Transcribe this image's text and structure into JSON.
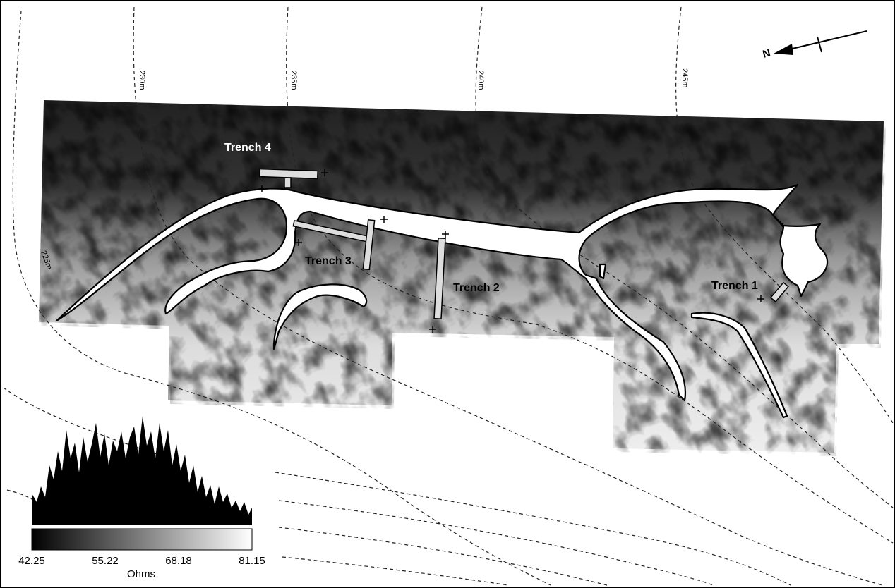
{
  "north_arrow": {
    "label": "N"
  },
  "contours": [
    {
      "label": "230m"
    },
    {
      "label": "235m"
    },
    {
      "label": "240m"
    },
    {
      "label": "245m"
    },
    {
      "label": "225m"
    }
  ],
  "trenches": [
    {
      "label": "Trench 4"
    },
    {
      "label": "Trench 3"
    },
    {
      "label": "Trench 2"
    },
    {
      "label": "Trench 1"
    }
  ],
  "legend": {
    "ticks": [
      "42.25",
      "55.22",
      "68.18",
      "81.15"
    ],
    "unit": "Ohms"
  }
}
